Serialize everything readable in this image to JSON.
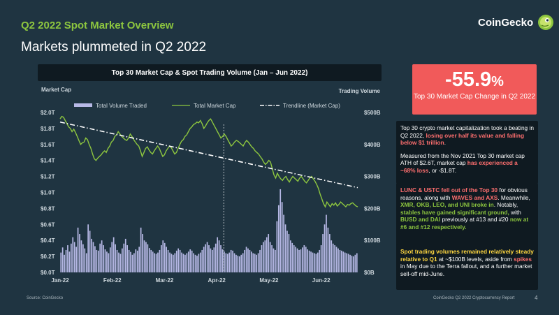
{
  "header": {
    "section_title": "Q2 2022 Spot Market Overview",
    "headline": "Markets plummeted in Q2 2022",
    "logo_text": "CoinGecko"
  },
  "chart_data": {
    "type": "bar+line",
    "title": "Top 30 Market Cap & Spot Trading Volume (Jan – Jun 2022)",
    "ylabel_left": "Market Cap",
    "ylabel_right": "Trading Volume",
    "y_left_ticks": [
      "$0.0T",
      "$0.2T",
      "$0.4T",
      "$0.6T",
      "$0.8T",
      "$1.0T",
      "$1.2T",
      "$1.4T",
      "$1.6T",
      "$1.8T",
      "$2.0T"
    ],
    "y_right_ticks": [
      "$0B",
      "$100B",
      "$200B",
      "$300B",
      "$400B",
      "$500B"
    ],
    "x_ticks": [
      "Jan-22",
      "Feb-22",
      "Mar-22",
      "Apr-22",
      "May-22",
      "Jun-22"
    ],
    "ylim_left": [
      0,
      2.0
    ],
    "ylim_right": [
      0,
      500
    ],
    "x_range": [
      "2022-01-01",
      "2022-06-30"
    ],
    "series": [
      {
        "name": "Total Volume Traded",
        "kind": "bar",
        "color": "#b7b9e6",
        "values": [
          62,
          78,
          55,
          70,
          85,
          65,
          90,
          110,
          95,
          80,
          140,
          120,
          100,
          88,
          75,
          60,
          150,
          130,
          105,
          95,
          82,
          70,
          68,
          90,
          100,
          85,
          72,
          65,
          60,
          78,
          95,
          110,
          88,
          70,
          62,
          58,
          75,
          90,
          105,
          85,
          70,
          64,
          55,
          60,
          72,
          68,
          80,
          140,
          120,
          100,
          95,
          88,
          76,
          70,
          65,
          60,
          58,
          62,
          70,
          85,
          100,
          92,
          80,
          70,
          62,
          58,
          55,
          60,
          68,
          75,
          70,
          62,
          58,
          55,
          60,
          65,
          72,
          68,
          60,
          55,
          52,
          58,
          62,
          70,
          80,
          88,
          95,
          85,
          75,
          70,
          78,
          90,
          110,
          100,
          85,
          72,
          65,
          60,
          58,
          62,
          70,
          68,
          60,
          55,
          52,
          50,
          55,
          60,
          70,
          80,
          75,
          70,
          65,
          60,
          58,
          55,
          60,
          70,
          85,
          95,
          100,
          110,
          120,
          95,
          85,
          75,
          70,
          160,
          210,
          260,
          220,
          180,
          150,
          130,
          120,
          100,
          92,
          85,
          80,
          75,
          70,
          72,
          78,
          85,
          80,
          72,
          68,
          65,
          62,
          60,
          58,
          62,
          70,
          85,
          120,
          150,
          180,
          140,
          120,
          100,
          90,
          85,
          80,
          75,
          70,
          68,
          65,
          62,
          60,
          58,
          55,
          52,
          50,
          55,
          60
        ]
      },
      {
        "name": "Total Market Cap",
        "kind": "line",
        "color": "#8dc63f",
        "values": [
          1.92,
          1.95,
          1.94,
          1.9,
          1.86,
          1.82,
          1.8,
          1.76,
          1.79,
          1.75,
          1.7,
          1.65,
          1.6,
          1.62,
          1.63,
          1.68,
          1.66,
          1.6,
          1.55,
          1.48,
          1.42,
          1.4,
          1.43,
          1.45,
          1.47,
          1.5,
          1.52,
          1.5,
          1.55,
          1.58,
          1.63,
          1.65,
          1.7,
          1.72,
          1.76,
          1.73,
          1.7,
          1.68,
          1.66,
          1.65,
          1.68,
          1.73,
          1.7,
          1.66,
          1.63,
          1.6,
          1.58,
          1.52,
          1.45,
          1.5,
          1.55,
          1.57,
          1.53,
          1.5,
          1.48,
          1.52,
          1.55,
          1.58,
          1.55,
          1.5,
          1.45,
          1.47,
          1.52,
          1.55,
          1.58,
          1.56,
          1.52,
          1.48,
          1.5,
          1.55,
          1.6,
          1.64,
          1.66,
          1.7,
          1.72,
          1.76,
          1.8,
          1.82,
          1.85,
          1.86,
          1.88,
          1.87,
          1.9,
          1.86,
          1.8,
          1.83,
          1.87,
          1.9,
          1.92,
          1.88,
          1.84,
          1.8,
          1.76,
          1.72,
          1.68,
          1.7,
          1.73,
          1.7,
          1.66,
          1.62,
          1.58,
          1.6,
          1.63,
          1.65,
          1.64,
          1.62,
          1.6,
          1.58,
          1.62,
          1.65,
          1.63,
          1.6,
          1.57,
          1.55,
          1.52,
          1.5,
          1.48,
          1.45,
          1.42,
          1.38,
          1.35,
          1.37,
          1.4,
          1.38,
          1.3,
          1.22,
          1.18,
          1.24,
          1.2,
          1.17,
          1.15,
          1.18,
          1.2,
          1.16,
          1.13,
          1.17,
          1.2,
          1.18,
          1.16,
          1.14,
          1.18,
          1.2,
          1.17,
          1.14,
          1.12,
          1.15,
          1.18,
          1.2,
          1.17,
          1.14,
          1.1,
          1.05,
          0.98,
          0.92,
          0.86,
          0.82,
          0.88,
          0.85,
          0.82,
          0.86,
          0.84,
          0.87,
          0.83,
          0.85,
          0.88,
          0.86,
          0.84,
          0.82,
          0.85,
          0.84,
          0.86,
          0.87,
          0.85,
          0.83,
          0.82
        ]
      },
      {
        "name": "Trendline (Market Cap)",
        "kind": "trend",
        "color": "#ffffff",
        "values": [
          1.88,
          1.06
        ]
      }
    ],
    "legend_position": "top",
    "grid": false,
    "annotation_line_x": "Apr-22"
  },
  "stat": {
    "value": "-55.9",
    "unit": "%",
    "caption": "Top 30 Market Cap Change in Q2 2022"
  },
  "notes": {
    "n1_p1_a": "Top 30 crypto market capitalization took a beating in Q2 2022,",
    "n1_p1_b": "losing over half its value and falling below $1 trillion",
    "n1_p1_c": ".",
    "n1_p2_a": "Measured from the Nov 2021 Top 30 market cap ATH of $2.6T, market cap",
    "n1_p2_b": "has experienced  a ~68% loss",
    "n1_p2_c": ", or -$1.8T.",
    "n2_a": "LUNC & USTC fell out of the Top 30",
    "n2_b": " for obvious reasons, along with ",
    "n2_c": "WAVES and AXS",
    "n2_d": ". Meanwhile, ",
    "n2_e": "XMR, OKB, LEO, and UNI broke in",
    "n2_f": ". Notably, ",
    "n2_g": "stables have gained significant ground,",
    "n2_h": " with ",
    "n2_i": "BUSD and DAI",
    "n2_j": " previously at #13 and #20 ",
    "n2_k": "now at #6 and #12 respectively.",
    "n3_a": "Spot trading volumes remained relatively steady relative to Q1",
    "n3_b": " at ~$100B levels, aside from ",
    "n3_c": "spikes",
    "n3_d": " in May due to the Terra fallout, and a further market  sell-off mid-June."
  },
  "footer": {
    "source": "Source: CoinGecko",
    "report": "CoinGecko Q2 2022 Cryptocurrency Report",
    "page": "4"
  }
}
